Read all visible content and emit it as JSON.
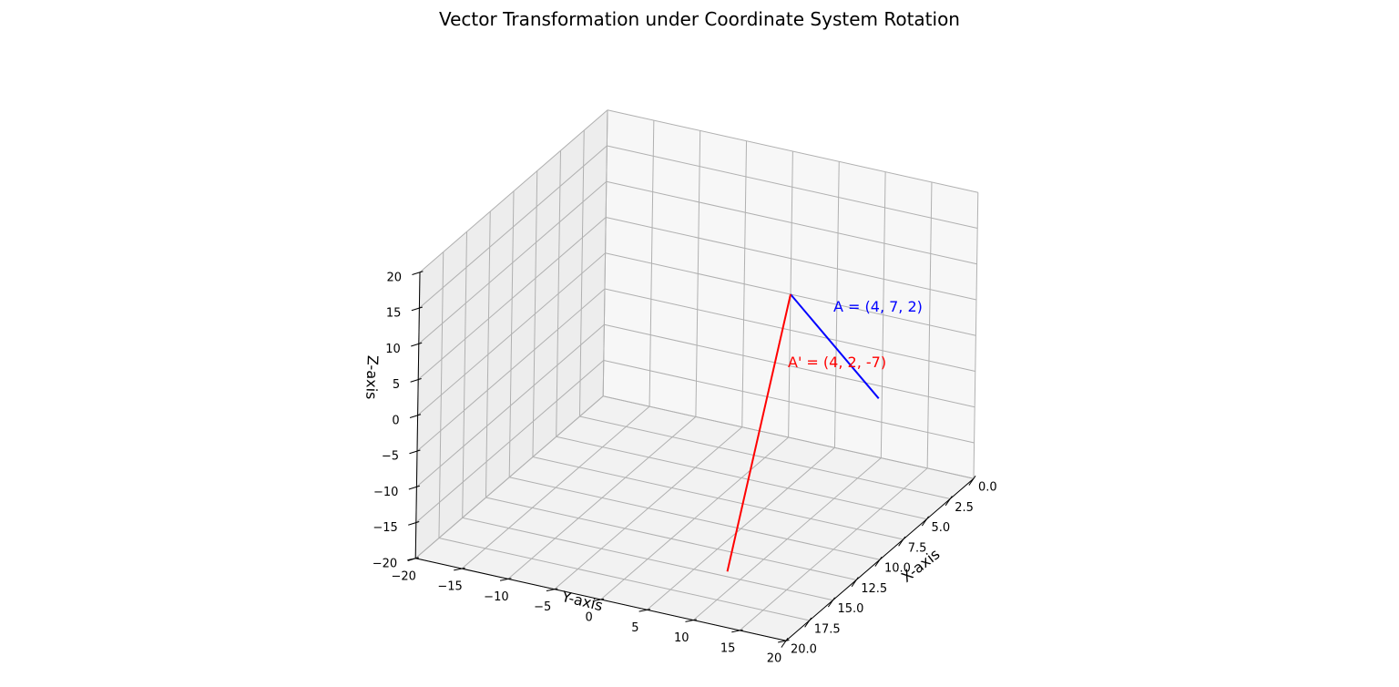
{
  "chart_data": {
    "type": "line",
    "projection": "3d",
    "title": "Vector Transformation under Coordinate System Rotation",
    "xlabel": "X-axis",
    "ylabel": "Y-axis",
    "zlabel": "Z-axis",
    "xlim": [
      0,
      20
    ],
    "ylim": [
      -20,
      20
    ],
    "zlim": [
      -20,
      20
    ],
    "x_ticks": [
      "0.0",
      "2.5",
      "5.0",
      "7.5",
      "10.0",
      "12.5",
      "15.0",
      "17.5",
      "20.0"
    ],
    "y_ticks": [
      "−20",
      "−15",
      "−10",
      "−5",
      "0",
      "5",
      "10",
      "15",
      "20"
    ],
    "z_ticks": [
      "−20",
      "−15",
      "−10",
      "−5",
      "0",
      "5",
      "10",
      "15",
      "20"
    ],
    "grid": true,
    "series": [
      {
        "name": "A = (4, 7, 2)",
        "color": "#0000ff",
        "from": [
          0,
          0,
          0
        ],
        "to": [
          4,
          7,
          2
        ],
        "label_text": "A = (4, 7, 2)"
      },
      {
        "name": "A' = (4, 2, -7)",
        "color": "#ff0000",
        "from": [
          0,
          0,
          0
        ],
        "to": [
          4,
          2,
          -7
        ],
        "label_text": "A' = (4, 2, -7)"
      }
    ]
  }
}
